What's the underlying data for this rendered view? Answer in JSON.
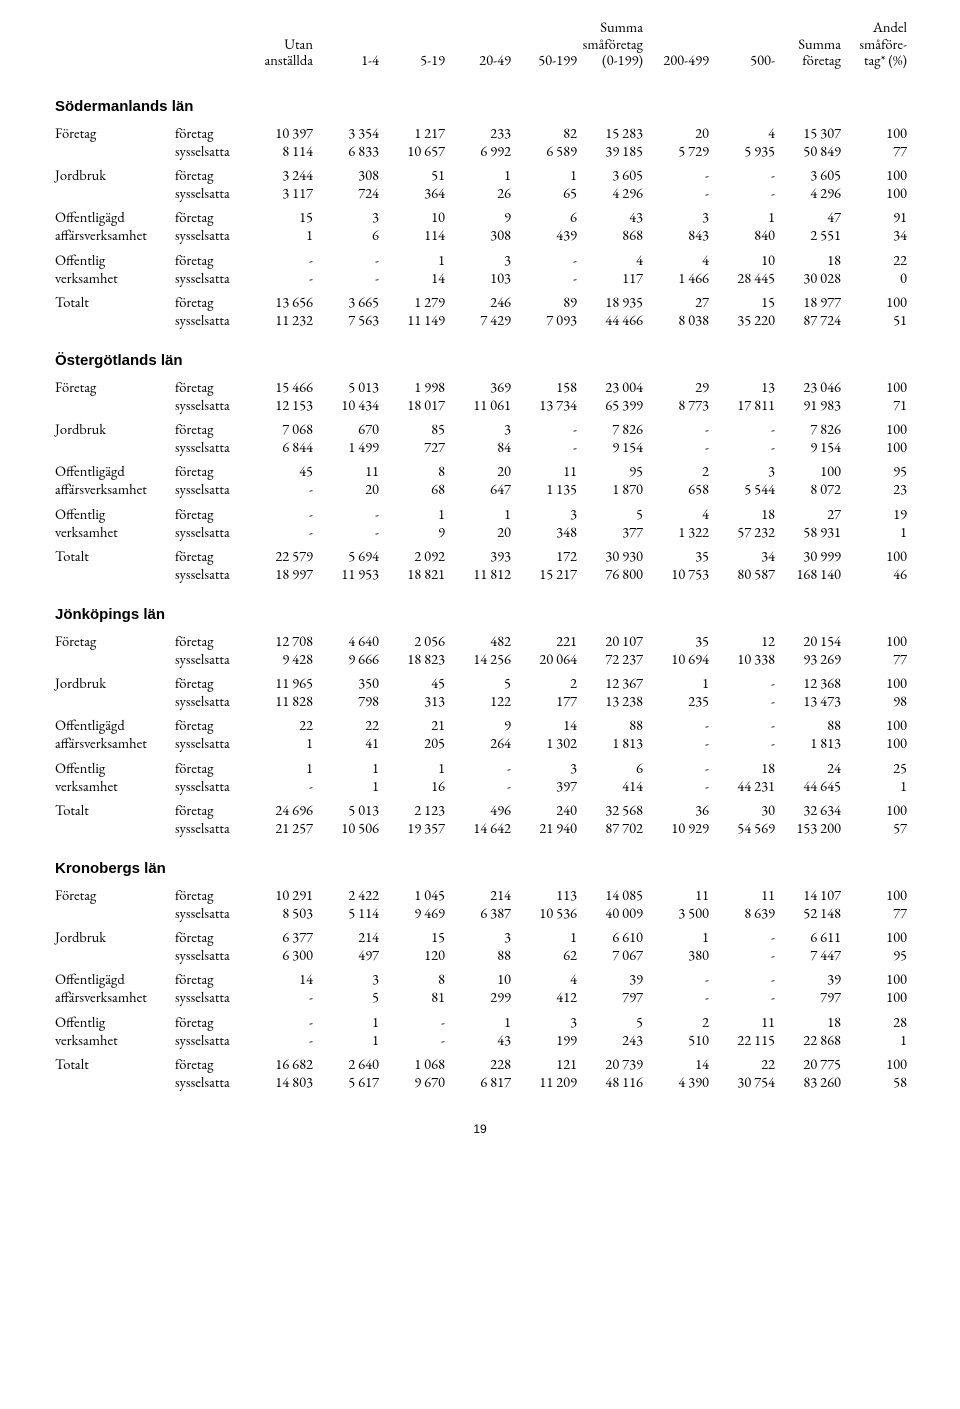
{
  "columns": {
    "c0": "",
    "c1": "",
    "c2": [
      "Utan",
      "anställda"
    ],
    "c3": "1-4",
    "c4": "5-19",
    "c5": "20-49",
    "c6": "50-199",
    "c7": [
      "Summa",
      "småföretag",
      "(0-199)"
    ],
    "c8": "200-499",
    "c9": "500-",
    "c10": [
      "Summa",
      "företag"
    ],
    "c11": [
      "Andel",
      "småföre-",
      "tag* (%)"
    ]
  },
  "labels": {
    "foretag": "företag",
    "syssel": "sysselsatta"
  },
  "rowlabels": {
    "Foretag": "Företag",
    "Jordbruk": "Jordbruk",
    "OffAff": [
      "Offentligägd",
      "affärsverksamhet"
    ],
    "OffVerk": [
      "Offentlig",
      "verksamhet"
    ],
    "Totalt": "Totalt"
  },
  "sections": [
    {
      "title": "Södermanlands län",
      "rows": [
        {
          "name": "Foretag",
          "f": [
            "10 397",
            "3 354",
            "1 217",
            "233",
            "82",
            "15 283",
            "20",
            "4",
            "15 307",
            "100"
          ],
          "s": [
            "8 114",
            "6 833",
            "10 657",
            "6 992",
            "6 589",
            "39 185",
            "5 729",
            "5 935",
            "50 849",
            "77"
          ]
        },
        {
          "name": "Jordbruk",
          "f": [
            "3 244",
            "308",
            "51",
            "1",
            "1",
            "3 605",
            "-",
            "-",
            "3 605",
            "100"
          ],
          "s": [
            "3 117",
            "724",
            "364",
            "26",
            "65",
            "4 296",
            "-",
            "-",
            "4 296",
            "100"
          ]
        },
        {
          "name": "OffAff",
          "f": [
            "15",
            "3",
            "10",
            "9",
            "6",
            "43",
            "3",
            "1",
            "47",
            "91"
          ],
          "s": [
            "1",
            "6",
            "114",
            "308",
            "439",
            "868",
            "843",
            "840",
            "2 551",
            "34"
          ]
        },
        {
          "name": "OffVerk",
          "f": [
            "-",
            "-",
            "1",
            "3",
            "-",
            "4",
            "4",
            "10",
            "18",
            "22"
          ],
          "s": [
            "-",
            "-",
            "14",
            "103",
            "-",
            "117",
            "1 466",
            "28 445",
            "30 028",
            "0"
          ]
        },
        {
          "name": "Totalt",
          "f": [
            "13 656",
            "3 665",
            "1 279",
            "246",
            "89",
            "18 935",
            "27",
            "15",
            "18 977",
            "100"
          ],
          "s": [
            "11 232",
            "7 563",
            "11 149",
            "7 429",
            "7 093",
            "44 466",
            "8 038",
            "35 220",
            "87 724",
            "51"
          ]
        }
      ]
    },
    {
      "title": "Östergötlands län",
      "rows": [
        {
          "name": "Foretag",
          "f": [
            "15 466",
            "5 013",
            "1 998",
            "369",
            "158",
            "23 004",
            "29",
            "13",
            "23 046",
            "100"
          ],
          "s": [
            "12 153",
            "10 434",
            "18 017",
            "11 061",
            "13 734",
            "65 399",
            "8 773",
            "17 811",
            "91 983",
            "71"
          ]
        },
        {
          "name": "Jordbruk",
          "f": [
            "7 068",
            "670",
            "85",
            "3",
            "-",
            "7 826",
            "-",
            "-",
            "7 826",
            "100"
          ],
          "s": [
            "6 844",
            "1 499",
            "727",
            "84",
            "-",
            "9 154",
            "-",
            "-",
            "9 154",
            "100"
          ]
        },
        {
          "name": "OffAff",
          "f": [
            "45",
            "11",
            "8",
            "20",
            "11",
            "95",
            "2",
            "3",
            "100",
            "95"
          ],
          "s": [
            "-",
            "20",
            "68",
            "647",
            "1 135",
            "1 870",
            "658",
            "5 544",
            "8 072",
            "23"
          ]
        },
        {
          "name": "OffVerk",
          "f": [
            "-",
            "-",
            "1",
            "1",
            "3",
            "5",
            "4",
            "18",
            "27",
            "19"
          ],
          "s": [
            "-",
            "-",
            "9",
            "20",
            "348",
            "377",
            "1 322",
            "57 232",
            "58 931",
            "1"
          ]
        },
        {
          "name": "Totalt",
          "f": [
            "22 579",
            "5 694",
            "2 092",
            "393",
            "172",
            "30 930",
            "35",
            "34",
            "30 999",
            "100"
          ],
          "s": [
            "18 997",
            "11 953",
            "18 821",
            "11 812",
            "15 217",
            "76 800",
            "10 753",
            "80 587",
            "168 140",
            "46"
          ]
        }
      ]
    },
    {
      "title": "Jönköpings län",
      "rows": [
        {
          "name": "Foretag",
          "f": [
            "12 708",
            "4 640",
            "2 056",
            "482",
            "221",
            "20 107",
            "35",
            "12",
            "20 154",
            "100"
          ],
          "s": [
            "9 428",
            "9 666",
            "18 823",
            "14 256",
            "20 064",
            "72 237",
            "10 694",
            "10 338",
            "93 269",
            "77"
          ]
        },
        {
          "name": "Jordbruk",
          "f": [
            "11 965",
            "350",
            "45",
            "5",
            "2",
            "12 367",
            "1",
            "-",
            "12 368",
            "100"
          ],
          "s": [
            "11 828",
            "798",
            "313",
            "122",
            "177",
            "13 238",
            "235",
            "-",
            "13 473",
            "98"
          ]
        },
        {
          "name": "OffAff",
          "f": [
            "22",
            "22",
            "21",
            "9",
            "14",
            "88",
            "-",
            "-",
            "88",
            "100"
          ],
          "s": [
            "1",
            "41",
            "205",
            "264",
            "1 302",
            "1 813",
            "-",
            "-",
            "1 813",
            "100"
          ]
        },
        {
          "name": "OffVerk",
          "f": [
            "1",
            "1",
            "1",
            "-",
            "3",
            "6",
            "-",
            "18",
            "24",
            "25"
          ],
          "s": [
            "-",
            "1",
            "16",
            "-",
            "397",
            "414",
            "-",
            "44 231",
            "44 645",
            "1"
          ]
        },
        {
          "name": "Totalt",
          "f": [
            "24 696",
            "5 013",
            "2 123",
            "496",
            "240",
            "32 568",
            "36",
            "30",
            "32 634",
            "100"
          ],
          "s": [
            "21 257",
            "10 506",
            "19 357",
            "14 642",
            "21 940",
            "87 702",
            "10 929",
            "54 569",
            "153 200",
            "57"
          ]
        }
      ]
    },
    {
      "title": "Kronobergs län",
      "rows": [
        {
          "name": "Foretag",
          "f": [
            "10 291",
            "2 422",
            "1 045",
            "214",
            "113",
            "14 085",
            "11",
            "11",
            "14 107",
            "100"
          ],
          "s": [
            "8 503",
            "5 114",
            "9 469",
            "6 387",
            "10 536",
            "40 009",
            "3 500",
            "8 639",
            "52 148",
            "77"
          ]
        },
        {
          "name": "Jordbruk",
          "f": [
            "6 377",
            "214",
            "15",
            "3",
            "1",
            "6 610",
            "1",
            "-",
            "6 611",
            "100"
          ],
          "s": [
            "6 300",
            "497",
            "120",
            "88",
            "62",
            "7 067",
            "380",
            "-",
            "7 447",
            "95"
          ]
        },
        {
          "name": "OffAff",
          "f": [
            "14",
            "3",
            "8",
            "10",
            "4",
            "39",
            "-",
            "-",
            "39",
            "100"
          ],
          "s": [
            "-",
            "5",
            "81",
            "299",
            "412",
            "797",
            "-",
            "-",
            "797",
            "100"
          ]
        },
        {
          "name": "OffVerk",
          "f": [
            "-",
            "1",
            "-",
            "1",
            "3",
            "5",
            "2",
            "11",
            "18",
            "28"
          ],
          "s": [
            "-",
            "1",
            "-",
            "43",
            "199",
            "243",
            "510",
            "22 115",
            "22 868",
            "1"
          ]
        },
        {
          "name": "Totalt",
          "f": [
            "16 682",
            "2 640",
            "1 068",
            "228",
            "121",
            "20 739",
            "14",
            "22",
            "20 775",
            "100"
          ],
          "s": [
            "14 803",
            "5 617",
            "9 670",
            "6 817",
            "11 209",
            "48 116",
            "4 390",
            "30 754",
            "83 260",
            "58"
          ]
        }
      ]
    }
  ],
  "pageNumber": "19"
}
